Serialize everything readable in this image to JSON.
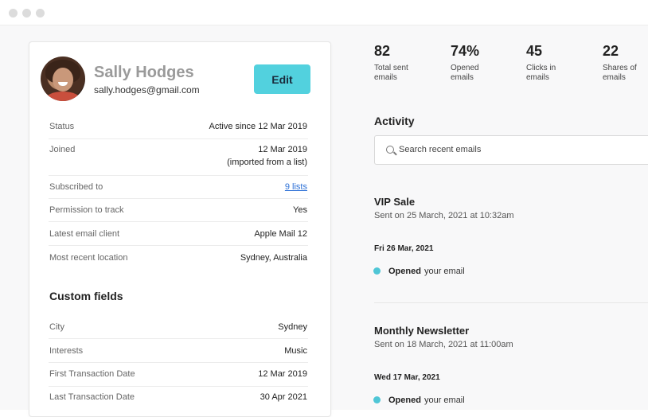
{
  "profile": {
    "name": "Sally Hodges",
    "email": "sally.hodges@gmail.com",
    "edit_label": "Edit"
  },
  "details": [
    {
      "label": "Status",
      "value": "Active since 12 Mar 2019"
    },
    {
      "label": "Joined",
      "value": "12 Mar 2019",
      "sub": "(imported from a list)"
    },
    {
      "label": "Subscribed to",
      "value": "9 lists"
    },
    {
      "label": "Permission to track",
      "value": "Yes"
    },
    {
      "label": "Latest email client",
      "value": "Apple Mail 12"
    },
    {
      "label": "Most recent location",
      "value": "Sydney, Australia"
    }
  ],
  "custom_fields": {
    "title": "Custom fields",
    "rows": [
      {
        "label": "City",
        "value": "Sydney"
      },
      {
        "label": "Interests",
        "value": "Music"
      },
      {
        "label": "First Transaction Date",
        "value": "12 Mar 2019"
      },
      {
        "label": "Last Transaction Date",
        "value": "30 Apr 2021"
      }
    ]
  },
  "stats": [
    {
      "value": "82",
      "label": "Total sent emails"
    },
    {
      "value": "74%",
      "label": "Opened emails"
    },
    {
      "value": "45",
      "label": "Clicks in emails"
    },
    {
      "value": "22",
      "label": "Shares of emails"
    }
  ],
  "activity": {
    "title": "Activity",
    "search_placeholder": "Search recent emails",
    "items": [
      {
        "campaign": "VIP Sale",
        "sent": "Sent on 25 March, 2021 at 10:32am",
        "date": "Fri 26 Mar, 2021",
        "action": "Opened",
        "target": "your email"
      },
      {
        "campaign": "Monthly Newsletter",
        "sent": "Sent on 18 March, 2021 at 11:00am",
        "date": "Wed 17 Mar, 2021",
        "action": "Opened",
        "target": "your email"
      }
    ]
  },
  "colors": {
    "accent": "#52d1de",
    "bullet": "#4fc6d6",
    "link": "#2b6fd6"
  }
}
